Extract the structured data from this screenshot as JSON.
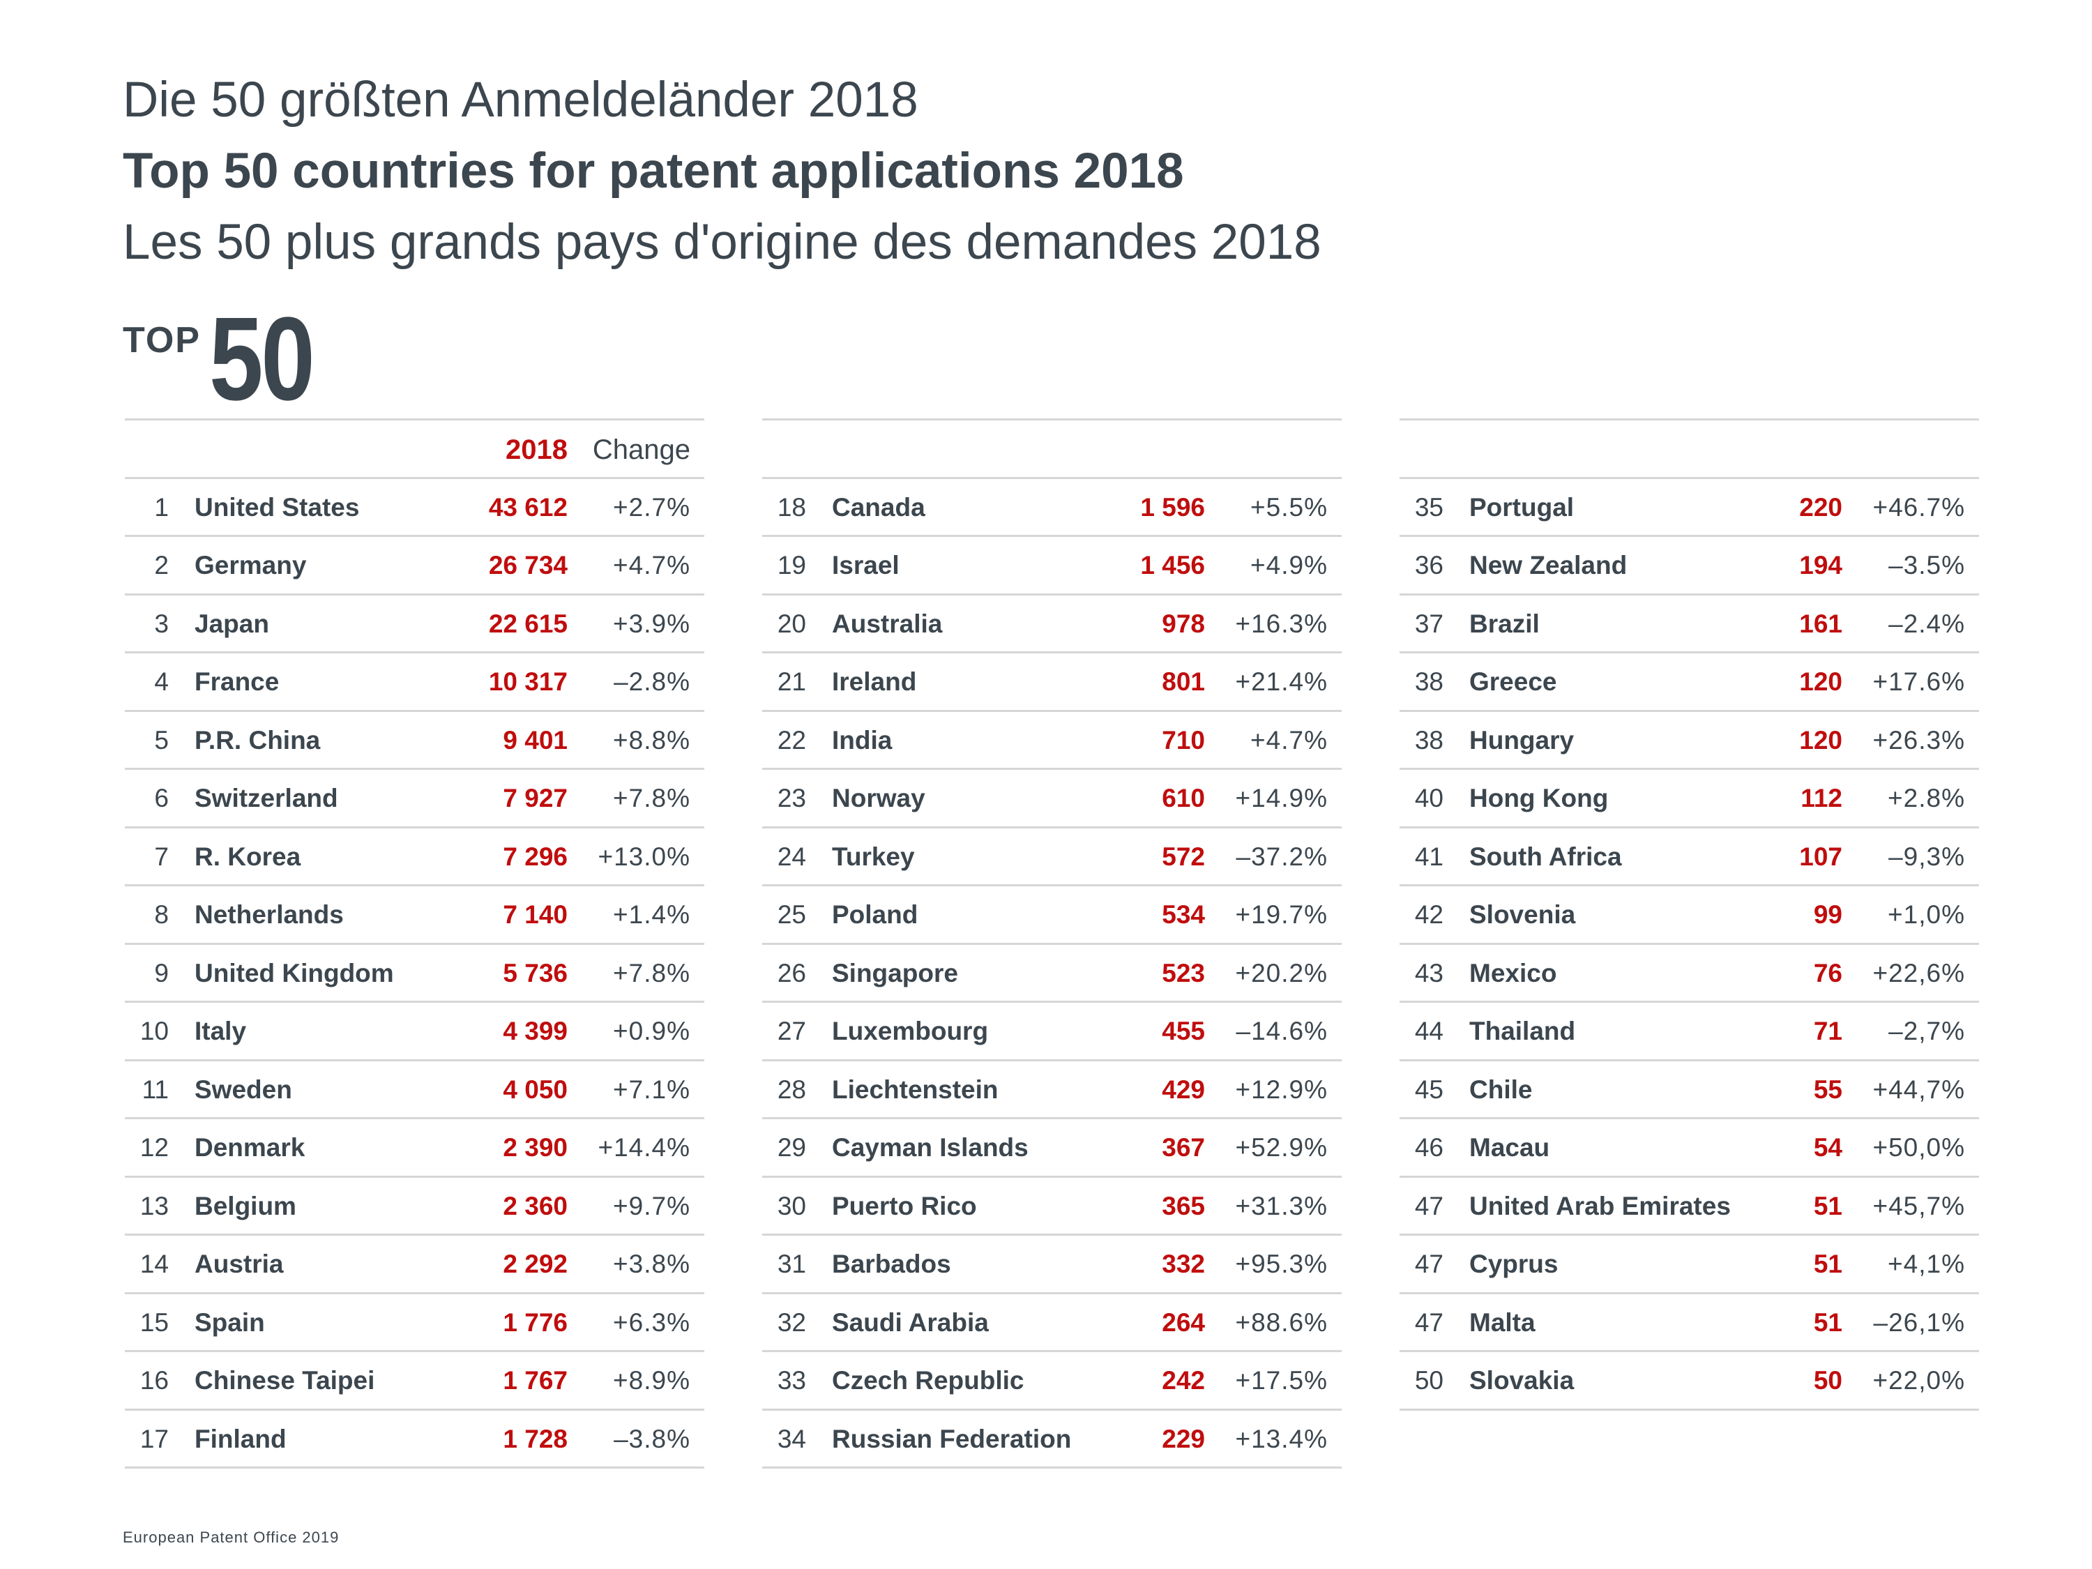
{
  "titles": {
    "de": "Die 50 größten Anmeldeländer 2018",
    "en": "Top 50 countries for patent applications 2018",
    "fr": "Les 50 plus grands pays d'origine des demandes 2018"
  },
  "badge": {
    "top": "TOP",
    "number": "50"
  },
  "table_header": {
    "year": "2018",
    "change": "Change"
  },
  "columns": [
    [
      [
        "1",
        "United States",
        "43 612",
        "+2.7%"
      ],
      [
        "2",
        "Germany",
        "26 734",
        "+4.7%"
      ],
      [
        "3",
        "Japan",
        "22 615",
        "+3.9%"
      ],
      [
        "4",
        "France",
        "10 317",
        "–2.8%"
      ],
      [
        "5",
        "P.R. China",
        "9 401",
        "+8.8%"
      ],
      [
        "6",
        "Switzerland",
        "7 927",
        "+7.8%"
      ],
      [
        "7",
        "R. Korea",
        "7 296",
        "+13.0%"
      ],
      [
        "8",
        "Netherlands",
        "7 140",
        "+1.4%"
      ],
      [
        "9",
        "United Kingdom",
        "5 736",
        "+7.8%"
      ],
      [
        "10",
        "Italy",
        "4 399",
        "+0.9%"
      ],
      [
        "11",
        "Sweden",
        "4 050",
        "+7.1%"
      ],
      [
        "12",
        "Denmark",
        "2 390",
        "+14.4%"
      ],
      [
        "13",
        "Belgium",
        "2 360",
        "+9.7%"
      ],
      [
        "14",
        "Austria",
        "2 292",
        "+3.8%"
      ],
      [
        "15",
        "Spain",
        "1 776",
        "+6.3%"
      ],
      [
        "16",
        "Chinese Taipei",
        "1 767",
        "+8.9%"
      ],
      [
        "17",
        "Finland",
        "1 728",
        "–3.8%"
      ]
    ],
    [
      [
        "18",
        "Canada",
        "1 596",
        "+5.5%"
      ],
      [
        "19",
        "Israel",
        "1 456",
        "+4.9%"
      ],
      [
        "20",
        "Australia",
        "978",
        "+16.3%"
      ],
      [
        "21",
        "Ireland",
        "801",
        "+21.4%"
      ],
      [
        "22",
        "India",
        "710",
        "+4.7%"
      ],
      [
        "23",
        "Norway",
        "610",
        "+14.9%"
      ],
      [
        "24",
        "Turkey",
        "572",
        "–37.2%"
      ],
      [
        "25",
        "Poland",
        "534",
        "+19.7%"
      ],
      [
        "26",
        "Singapore",
        "523",
        "+20.2%"
      ],
      [
        "27",
        "Luxembourg",
        "455",
        "–14.6%"
      ],
      [
        "28",
        "Liechtenstein",
        "429",
        "+12.9%"
      ],
      [
        "29",
        "Cayman Islands",
        "367",
        "+52.9%"
      ],
      [
        "30",
        "Puerto Rico",
        "365",
        "+31.3%"
      ],
      [
        "31",
        "Barbados",
        "332",
        "+95.3%"
      ],
      [
        "32",
        "Saudi Arabia",
        "264",
        "+88.6%"
      ],
      [
        "33",
        "Czech Republic",
        "242",
        "+17.5%"
      ],
      [
        "34",
        "Russian Federation",
        "229",
        "+13.4%"
      ]
    ],
    [
      [
        "35",
        "Portugal",
        "220",
        "+46.7%"
      ],
      [
        "36",
        "New Zealand",
        "194",
        "–3.5%"
      ],
      [
        "37",
        "Brazil",
        "161",
        "–2.4%"
      ],
      [
        "38",
        "Greece",
        "120",
        "+17.6%"
      ],
      [
        "38",
        "Hungary",
        "120",
        "+26.3%"
      ],
      [
        "40",
        "Hong Kong",
        "112",
        "+2.8%"
      ],
      [
        "41",
        "South Africa",
        "107",
        "–9,3%"
      ],
      [
        "42",
        "Slovenia",
        "99",
        "+1,0%"
      ],
      [
        "43",
        "Mexico",
        "76",
        "+22,6%"
      ],
      [
        "44",
        "Thailand",
        "71",
        "–2,7%"
      ],
      [
        "45",
        "Chile",
        "55",
        "+44,7%"
      ],
      [
        "46",
        "Macau",
        "54",
        "+50,0%"
      ],
      [
        "47",
        "United Arab Emirates",
        "51",
        "+45,7%"
      ],
      [
        "47",
        "Cyprus",
        "51",
        "+4,1%"
      ],
      [
        "47",
        "Malta",
        "51",
        "–26,1%"
      ],
      [
        "50",
        "Slovakia",
        "50",
        "+22,0%"
      ]
    ]
  ],
  "footer": "European Patent Office 2019",
  "colors": {
    "text": "#3c464e",
    "accent": "#c00d0d",
    "rule": "#d6d6d6"
  }
}
